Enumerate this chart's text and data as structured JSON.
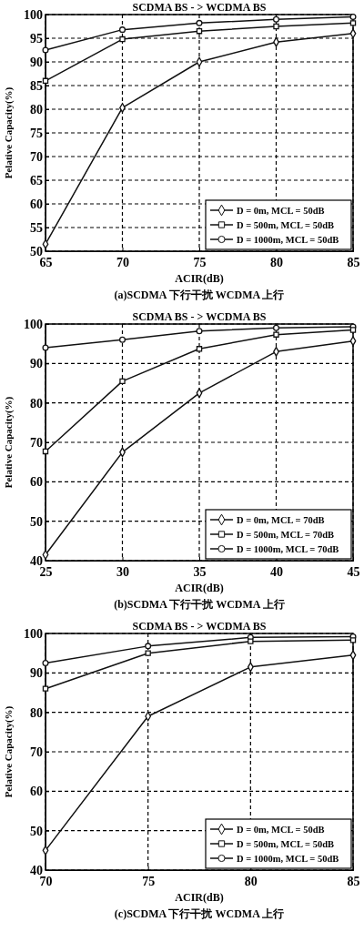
{
  "chart_data": [
    {
      "type": "line",
      "title": "SCDMA BS - > WCDMA BS",
      "xlabel": "ACIR(dB)",
      "ylabel": "Pelative Capacity(%)",
      "annotations": [
        "(a)SCDMA 下行干扰 WCDMA 上行"
      ],
      "x": [
        65,
        70,
        75,
        80,
        85
      ],
      "xlim": [
        65,
        85
      ],
      "xticks": [
        65,
        70,
        75,
        80,
        85
      ],
      "ylim": [
        50,
        100
      ],
      "yticks": [
        50,
        55,
        60,
        65,
        70,
        75,
        80,
        85,
        90,
        95,
        100
      ],
      "grid": true,
      "legend": "bottom right",
      "line_style": "solid",
      "series": [
        {
          "name": "D = 0m, MCL = 50dB",
          "color": "#111111",
          "marker": "diamond",
          "values": [
            51.5,
            80.3,
            90,
            94.2,
            96
          ]
        },
        {
          "name": "D = 500m, MCL = 50dB",
          "color": "#111111",
          "marker": "square",
          "values": [
            86,
            94.8,
            96.5,
            97.5,
            98.2
          ]
        },
        {
          "name": "D = 1000m, MCL = 50dB",
          "color": "#111111",
          "marker": "circle",
          "values": [
            92.5,
            96.8,
            98.2,
            99,
            99.5
          ]
        }
      ]
    },
    {
      "type": "line",
      "title": "SCDMA BS - > WCDMA BS",
      "xlabel": "ACIR(dB)",
      "ylabel": "Pelative Capacity(%)",
      "annotations": [
        "(b)SCDMA 下行干扰 WCDMA 上行"
      ],
      "x": [
        25,
        30,
        35,
        40,
        45
      ],
      "xlim": [
        25,
        45
      ],
      "xticks": [
        25,
        30,
        35,
        40,
        45
      ],
      "ylim": [
        40,
        100
      ],
      "yticks": [
        40,
        50,
        60,
        70,
        80,
        90,
        100
      ],
      "grid": true,
      "legend": "bottom right",
      "line_style": "solid",
      "series": [
        {
          "name": "D = 0m, MCL = 70dB",
          "color": "#111111",
          "marker": "diamond",
          "values": [
            41.5,
            67.5,
            82.5,
            93,
            95.7
          ]
        },
        {
          "name": "D = 500m, MCL = 70dB",
          "color": "#111111",
          "marker": "square",
          "values": [
            67.7,
            85.5,
            93.7,
            97.3,
            98.5
          ]
        },
        {
          "name": "D = 1000m, MCL = 70dB",
          "color": "#111111",
          "marker": "circle",
          "values": [
            94,
            96,
            98.2,
            99,
            99.3
          ]
        }
      ]
    },
    {
      "type": "line",
      "title": "SCDMA BS - > WCDMA BS",
      "xlabel": "ACIR(dB)",
      "ylabel": "Pelative Capacity(%)",
      "annotations": [
        "(c)SCDMA 下行干扰 WCDMA 上行"
      ],
      "x": [
        70,
        75,
        80,
        85
      ],
      "xlim": [
        70,
        85
      ],
      "xticks": [
        70,
        75,
        80,
        85
      ],
      "ylim": [
        40,
        100
      ],
      "yticks": [
        40,
        50,
        60,
        70,
        80,
        90,
        100
      ],
      "grid": true,
      "legend": "bottom right",
      "line_style": "solid",
      "series": [
        {
          "name": "D = 0m, MCL = 50dB",
          "color": "#111111",
          "marker": "diamond",
          "values": [
            45,
            79,
            91.5,
            94.5
          ]
        },
        {
          "name": "D = 500m, MCL = 50dB",
          "color": "#111111",
          "marker": "square",
          "values": [
            86,
            95,
            98,
            98.3
          ]
        },
        {
          "name": "D = 1000m, MCL = 50dB",
          "color": "#111111",
          "marker": "circle",
          "values": [
            92.5,
            96.8,
            99,
            99.2
          ]
        }
      ]
    }
  ]
}
